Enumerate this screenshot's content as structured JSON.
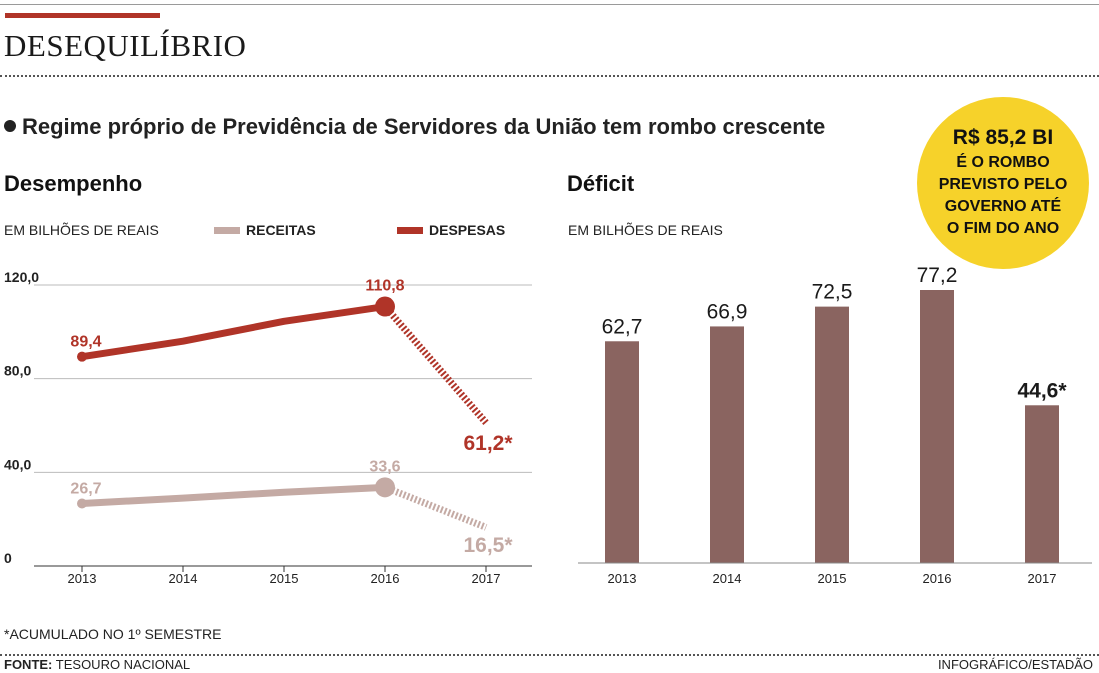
{
  "headline": "DESEQUILÍBRIO",
  "subtitle": "Regime próprio de Previdência de Servidores da União tem rombo crescente",
  "badge": {
    "value": "R$ 85,2 BI",
    "text": "É O ROMBO PREVISTO PELO GOVERNO ATÉ O FIM DO ANO",
    "color": "#f6d22a"
  },
  "footnote": "*ACUMULADO NO 1º SEMESTRE",
  "source_label": "FONTE:",
  "source_value": "TESOURO NACIONAL",
  "credit": "INFOGRÁFICO/ESTADÃO",
  "chart_data": [
    {
      "type": "line",
      "title": "Desempenho",
      "unit_label": "EM BILHÕES DE REAIS",
      "x": [
        "2013",
        "2014",
        "2015",
        "2016",
        "2017"
      ],
      "yticks": [
        "0",
        "40,0",
        "80,0",
        "120,0"
      ],
      "ylim": [
        0,
        120
      ],
      "grid": true,
      "legend_position": "top",
      "series": [
        {
          "name": "RECEITAS",
          "color": "#c4aaa4",
          "values": [
            26.7,
            29.0,
            31.5,
            33.6,
            16.5
          ],
          "labels": {
            "0": "26,7",
            "3": "33,6",
            "4": "16,5*"
          }
        },
        {
          "name": "DESPESAS",
          "color": "#b03428",
          "values": [
            89.4,
            96.0,
            104.5,
            110.8,
            61.2
          ],
          "labels": {
            "0": "89,4",
            "3": "110,8",
            "4": "61,2*"
          }
        }
      ]
    },
    {
      "type": "bar",
      "title": "Déficit",
      "unit_label": "EM BILHÕES DE REAIS",
      "categories": [
        "2013",
        "2014",
        "2015",
        "2016",
        "2017"
      ],
      "values": [
        62.7,
        66.9,
        72.5,
        77.2,
        44.6
      ],
      "value_labels": [
        "62,7",
        "66,9",
        "72,5",
        "77,2",
        "44,6*"
      ],
      "color": "#8a6460",
      "ylim": [
        0,
        77.2
      ]
    }
  ]
}
